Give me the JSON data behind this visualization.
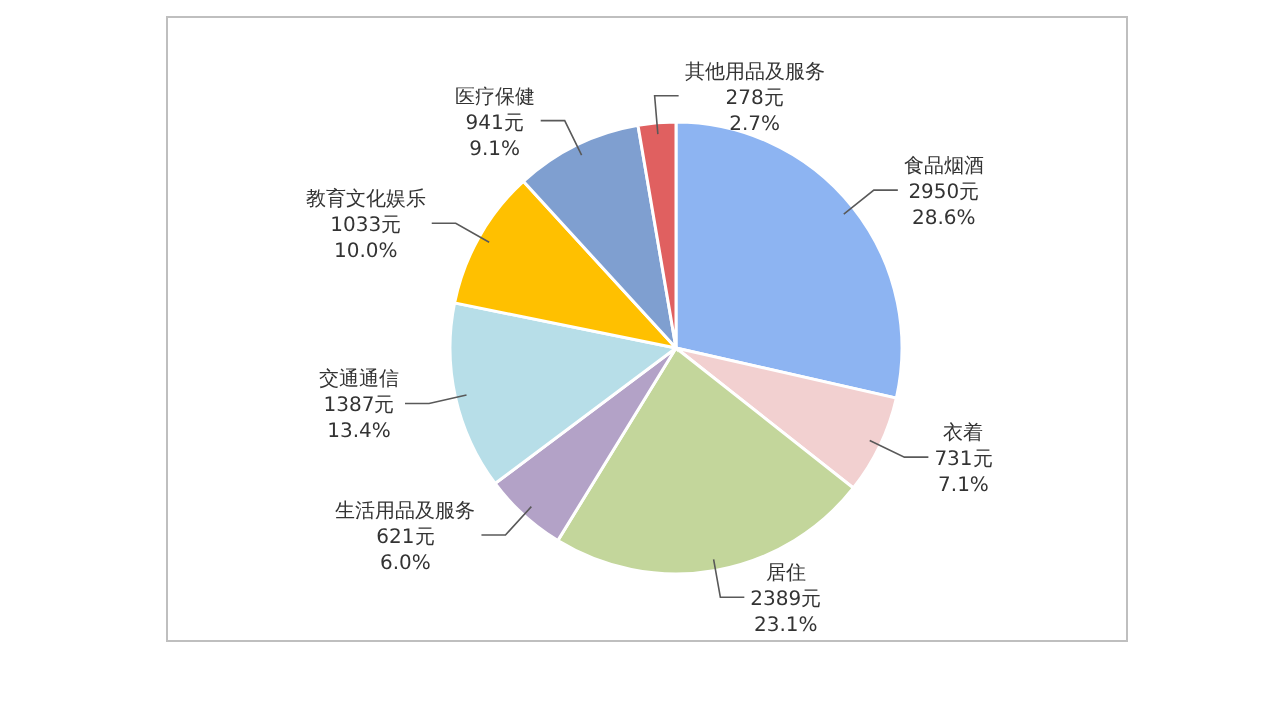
{
  "chart_data": {
    "type": "pie",
    "categories": [
      "食品烟酒",
      "衣着",
      "居住",
      "生活用品及服务",
      "交通通信",
      "教育文化娱乐",
      "医疗保健",
      "其他用品及服务"
    ],
    "values": [
      2950,
      731,
      2389,
      621,
      1387,
      1033,
      941,
      278
    ],
    "value_labels": [
      "2950元\n28.6%",
      "731元\n7.1%",
      "2389元\n23.1%",
      "621元\n6.0%",
      "1387元\n13.4%",
      "1033元\n10.0%",
      "941元\n9.1%",
      "278元\n2.7%"
    ],
    "colors": [
      "#8db4f2",
      "#f2d0d0",
      "#c3d69b",
      "#b3a2c7",
      "#b7dee8",
      "#ffc000",
      "#7f9fd0",
      "#e06060"
    ]
  }
}
